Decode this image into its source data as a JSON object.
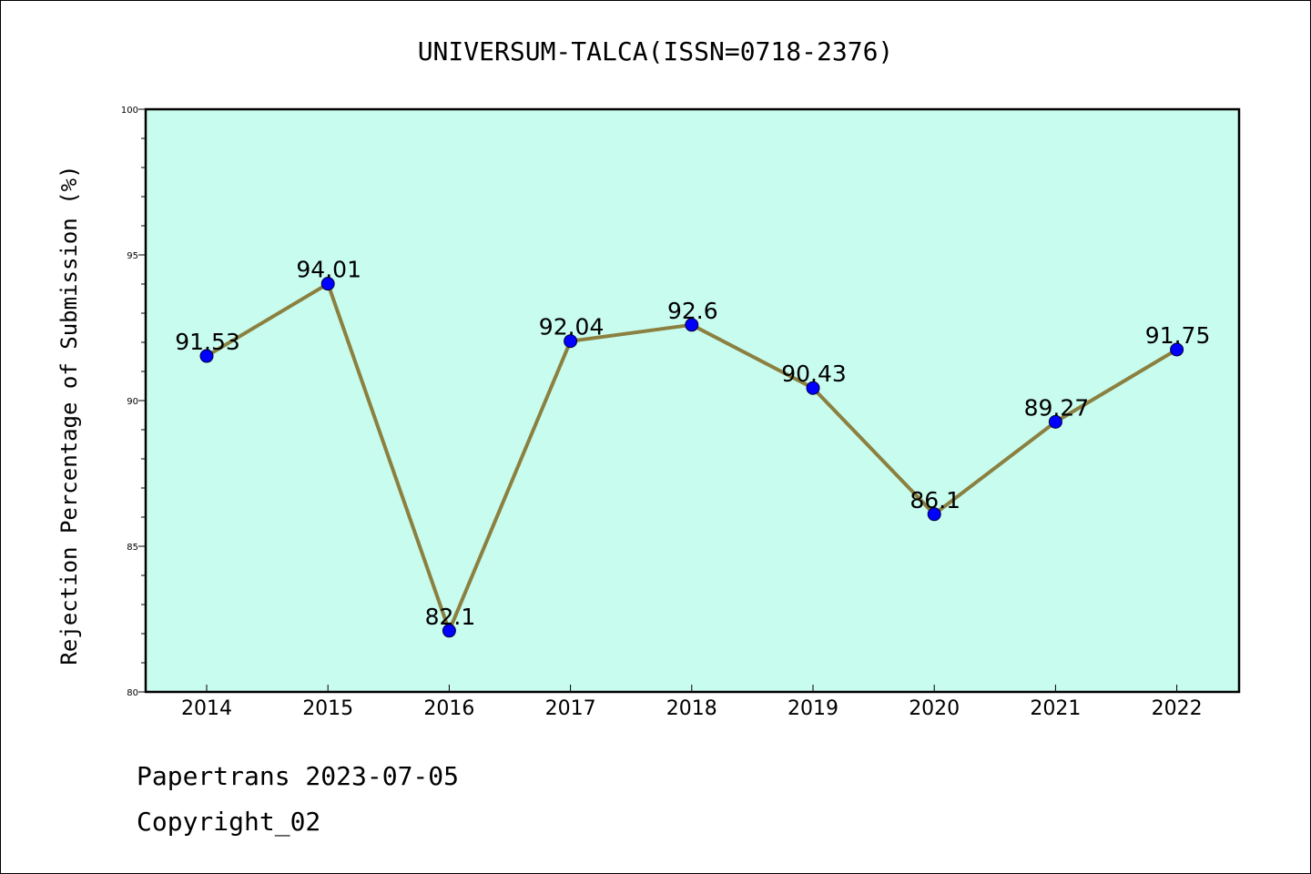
{
  "chart_data": {
    "type": "line",
    "title": "UNIVERSUM-TALCA(ISSN=0718-2376)",
    "xlabel": "",
    "ylabel": "Rejection Percentage of Submission (%)",
    "categories": [
      "2014",
      "2015",
      "2016",
      "2017",
      "2018",
      "2019",
      "2020",
      "2021",
      "2022"
    ],
    "series": [
      {
        "values": [
          91.53,
          94.01,
          82.1,
          92.04,
          92.6,
          90.43,
          86.1,
          89.27,
          91.75
        ],
        "labels": [
          "91.53",
          "94.01",
          "82.1",
          "92.04",
          "92.6",
          "90.43",
          "86.1",
          "89.27",
          "91.75"
        ]
      }
    ],
    "ylim": [
      80,
      100
    ],
    "yticks": [
      "80",
      "85",
      "90",
      "95",
      "100"
    ],
    "grid": false,
    "colors": {
      "plot_background": "#c8fcee",
      "line": "#8b8040",
      "marker": "#0000ff"
    }
  },
  "footer": {
    "line1": "Papertrans 2023-07-05",
    "line2": "Copyright_02"
  }
}
